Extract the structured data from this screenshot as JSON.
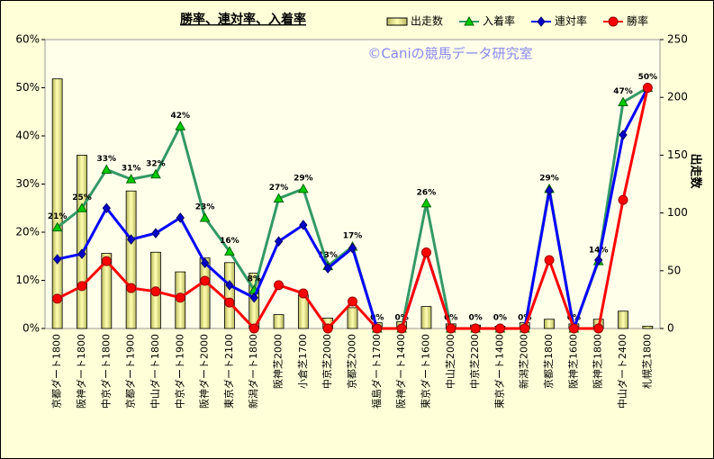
{
  "chart_data": {
    "type": "combo",
    "title": "勝率、連対率、入着率",
    "watermark": "©Caniの競馬データ研究室",
    "y2label": "出走数",
    "categories": [
      "京都ダート1800",
      "阪神ダート1800",
      "中京ダート1800",
      "京都ダート1900",
      "中山ダート1800",
      "中京ダート1900",
      "阪神ダート2000",
      "東京ダート2100",
      "新潟ダート1800",
      "阪神芝2000",
      "小倉芝1700",
      "中京芝2000",
      "京都芝2000",
      "福島ダート1700",
      "阪神ダート1400",
      "東京ダート1600",
      "中山芝2000",
      "中京芝2200",
      "東京ダート1400",
      "新潟芝2000",
      "京都芝1800",
      "阪神芝1600",
      "阪神芝1800",
      "中山ダート2400",
      "札幌芝1800"
    ],
    "ylim": [
      0,
      60
    ],
    "yticks": [
      {
        "value": 0,
        "label": "0%"
      },
      {
        "value": 10,
        "label": "10%"
      },
      {
        "value": 20,
        "label": "20%"
      },
      {
        "value": 30,
        "label": "30%"
      },
      {
        "value": 40,
        "label": "40%"
      },
      {
        "value": 50,
        "label": "50%"
      },
      {
        "value": 60,
        "label": "60%"
      }
    ],
    "y2lim": [
      0,
      250
    ],
    "y2ticks": [
      0,
      50,
      100,
      150,
      200,
      250
    ],
    "series": [
      {
        "name": "出走数",
        "type": "bar",
        "axis": "y2",
        "color": "#ffff99",
        "values": [
          216,
          150,
          65,
          119,
          66,
          49,
          61,
          57,
          48,
          12,
          29,
          9,
          18,
          5,
          6,
          19,
          4,
          3,
          2,
          5,
          8,
          4,
          8,
          15,
          2
        ]
      },
      {
        "name": "入着率",
        "type": "line",
        "marker": "triangle",
        "color": "#339966",
        "marker_color": "#00cc00",
        "values": [
          21,
          25,
          33,
          31,
          32,
          42,
          23,
          16,
          8,
          27,
          29,
          13,
          17,
          0,
          0,
          26,
          0,
          0,
          0,
          0,
          29,
          0,
          14,
          47,
          50
        ],
        "value_labels": [
          "21%",
          "25%",
          "33%",
          "31%",
          "32%",
          "42%",
          "23%",
          "16%",
          "8%",
          "27%",
          "29%",
          "13%",
          "17%",
          "0%",
          "0%",
          "26%",
          "0%",
          "0%",
          "0%",
          "0%",
          "29%",
          "0%",
          "14%",
          "47%",
          "50%"
        ]
      },
      {
        "name": "連対率",
        "type": "line",
        "marker": "diamond",
        "color": "#0000ff",
        "marker_color": "#0000cc",
        "values": [
          14.4,
          15.5,
          25,
          18.5,
          19.8,
          23,
          13.6,
          9,
          6.4,
          18.1,
          21.5,
          12.5,
          16.7,
          0,
          0,
          15.8,
          0,
          0,
          0,
          0,
          28.6,
          0,
          14.2,
          40.2,
          50
        ]
      },
      {
        "name": "勝率",
        "type": "line",
        "marker": "circle",
        "color": "#ff0000",
        "marker_color": "#ff0000",
        "values": [
          6.2,
          8.8,
          14,
          8.4,
          7.7,
          6.4,
          9.9,
          5.4,
          0,
          9,
          7.3,
          0,
          5.6,
          0,
          0,
          15.8,
          0,
          0,
          0,
          0,
          14.2,
          0,
          0,
          26.7,
          50
        ]
      }
    ]
  }
}
